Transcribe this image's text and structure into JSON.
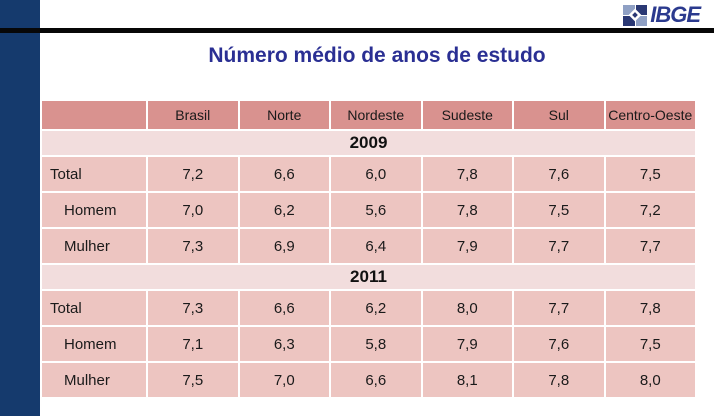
{
  "logo": {
    "text": "IBGE",
    "icon": "ibge-map-symbol"
  },
  "title": "Número médio de anos de estudo",
  "colors": {
    "accent_bar_blue": "#153a6d",
    "title_blue": "#2a2f93",
    "logo_blue": "#2b3a8e",
    "header_pink": "#d9928f",
    "row_pink": "#edc5c1",
    "year_band_pink": "#f2dddd",
    "top_rule_black": "#070707"
  },
  "chart_data": {
    "type": "table",
    "title": "Número médio de anos de estudo",
    "columns": [
      "",
      "Brasil",
      "Norte",
      "Nordeste",
      "Sudeste",
      "Sul",
      "Centro-Oeste"
    ],
    "sections": [
      {
        "year": "2009",
        "rows": [
          {
            "label": "Total",
            "values": [
              "7,2",
              "6,6",
              "6,0",
              "7,8",
              "7,6",
              "7,5"
            ]
          },
          {
            "label": "Homem",
            "values": [
              "7,0",
              "6,2",
              "5,6",
              "7,8",
              "7,5",
              "7,2"
            ]
          },
          {
            "label": "Mulher",
            "values": [
              "7,3",
              "6,9",
              "6,4",
              "7,9",
              "7,7",
              "7,7"
            ]
          }
        ]
      },
      {
        "year": "2011",
        "rows": [
          {
            "label": "Total",
            "values": [
              "7,3",
              "6,6",
              "6,2",
              "8,0",
              "7,7",
              "7,8"
            ]
          },
          {
            "label": "Homem",
            "values": [
              "7,1",
              "6,3",
              "5,8",
              "7,9",
              "7,6",
              "7,5"
            ]
          },
          {
            "label": "Mulher",
            "values": [
              "7,5",
              "7,0",
              "6,6",
              "8,1",
              "7,8",
              "8,0"
            ]
          }
        ]
      }
    ]
  }
}
